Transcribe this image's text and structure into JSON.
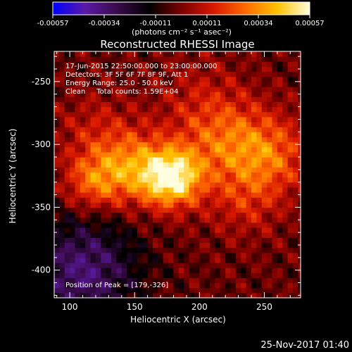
{
  "chart_data": {
    "type": "heatmap",
    "title": "Reconstructed RHESSI Image",
    "xlabel": "Heliocentric X (arcsec)",
    "ylabel": "Heliocentric Y (arcsec)",
    "xlim": [
      88,
      278
    ],
    "ylim": [
      -422,
      -226
    ],
    "x_ticks": [
      100,
      150,
      200,
      250
    ],
    "y_ticks": [
      -250,
      -300,
      -350,
      -400
    ],
    "colorbar": {
      "min": -0.00057,
      "max": 0.00057,
      "ticks": [
        "-0.00057",
        "-0.00034",
        "-0.00011",
        "0.00011",
        "0.00034",
        "0.00057"
      ],
      "unit_label": "(photons cm⁻² s⁻¹ asec⁻²)",
      "colors": [
        "#0000ff",
        "#5a1aa6",
        "#3a0b4a",
        "#000000",
        "#7a0000",
        "#d81800",
        "#ff6a00",
        "#ffc200",
        "#ffffe0"
      ]
    },
    "info_lines": [
      "17-Jun-2015 22:50:00.000 to 23:00:00.000",
      "Detectors: 3F 5F 6F 7F 8F 9F, Att 1",
      "Energy Range: 25.0 - 50.0 keV",
      "Clean     Total counts: 1.59E+04"
    ],
    "peak_label": "Position of Peak = [179,-326]",
    "peak": {
      "x": 179,
      "y": -326,
      "value": 0.00057
    },
    "sources": [
      {
        "x": 179,
        "y": -326,
        "amp": 1.0,
        "sigma": 16
      },
      {
        "x": 148,
        "y": -318,
        "amp": 0.55,
        "sigma": 20
      },
      {
        "x": 118,
        "y": -330,
        "amp": 0.45,
        "sigma": 16
      },
      {
        "x": 220,
        "y": -298,
        "amp": 0.42,
        "sigma": 24
      },
      {
        "x": 255,
        "y": -308,
        "amp": 0.45,
        "sigma": 22
      },
      {
        "x": 235,
        "y": -345,
        "amp": 0.25,
        "sigma": 20
      },
      {
        "x": 120,
        "y": -290,
        "amp": 0.22,
        "sigma": 22
      },
      {
        "x": 200,
        "y": -265,
        "amp": 0.18,
        "sigma": 25
      }
    ],
    "negative_region": {
      "x": 110,
      "y": -400,
      "amp": -0.55,
      "sigma": 30
    },
    "grid": false
  },
  "footer_date": "25-Nov-2017 01:40"
}
